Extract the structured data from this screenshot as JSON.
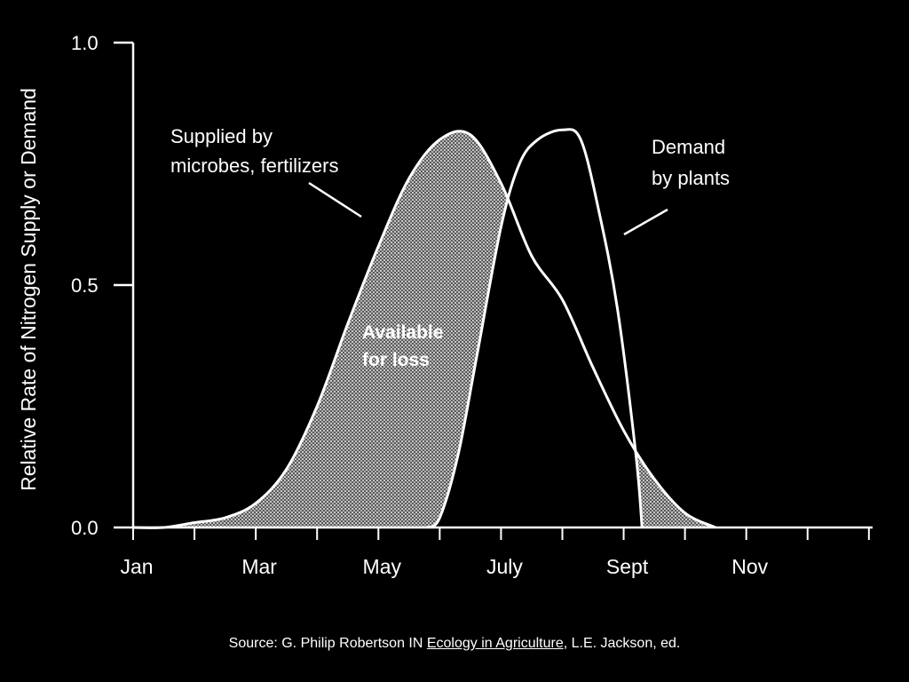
{
  "chart_data": {
    "type": "area",
    "title": "",
    "ylabel": "Relative Rate of Nitrogen Supply or Demand",
    "xlabel": "",
    "ylim": [
      0,
      1.0
    ],
    "y_ticks": [
      "1.0",
      "0.5",
      "0.0"
    ],
    "y_tick_values": [
      1.0,
      0.5,
      0.0
    ],
    "x_tick_labels": [
      "Jan",
      "Mar",
      "May",
      "July",
      "Sept",
      "Nov"
    ],
    "x_tick_label_months": [
      0,
      2,
      4,
      6,
      8,
      10
    ],
    "x_range_months": [
      0,
      12
    ],
    "series": [
      {
        "name": "Supplied by microbes, fertilizers",
        "x": [
          0,
          0.5,
          1.0,
          1.5,
          2.0,
          2.5,
          3.0,
          3.5,
          4.0,
          4.5,
          5.0,
          5.5,
          6.0,
          6.5,
          7.0,
          7.5,
          8.0,
          8.5,
          9.0,
          9.5
        ],
        "values": [
          0,
          0,
          0.01,
          0.02,
          0.05,
          0.12,
          0.25,
          0.42,
          0.58,
          0.72,
          0.8,
          0.81,
          0.71,
          0.56,
          0.47,
          0.33,
          0.2,
          0.1,
          0.03,
          0.0
        ]
      },
      {
        "name": "Demand by plants",
        "x": [
          4.8,
          5.0,
          5.3,
          5.6,
          6.0,
          6.3,
          6.6,
          7.0,
          7.3,
          7.6,
          7.9,
          8.2,
          8.3
        ],
        "values": [
          0,
          0.02,
          0.15,
          0.35,
          0.62,
          0.75,
          0.8,
          0.82,
          0.8,
          0.65,
          0.45,
          0.15,
          0.0
        ]
      }
    ],
    "annotations": {
      "supply": [
        "Supplied by",
        "microbes, fertilizers"
      ],
      "demand": [
        "Demand",
        "by plants"
      ],
      "available": [
        "Available",
        "for loss"
      ]
    },
    "shaded_regions": "supply minus demand (available for loss)"
  },
  "source": {
    "prefix": "Source: G. Philip Robertson IN ",
    "book": "Ecology in Agriculture",
    "suffix": ", L.E. Jackson, ed."
  },
  "colors": {
    "background": "#000000",
    "foreground": "#ffffff",
    "shade": "#8a8a8a"
  }
}
